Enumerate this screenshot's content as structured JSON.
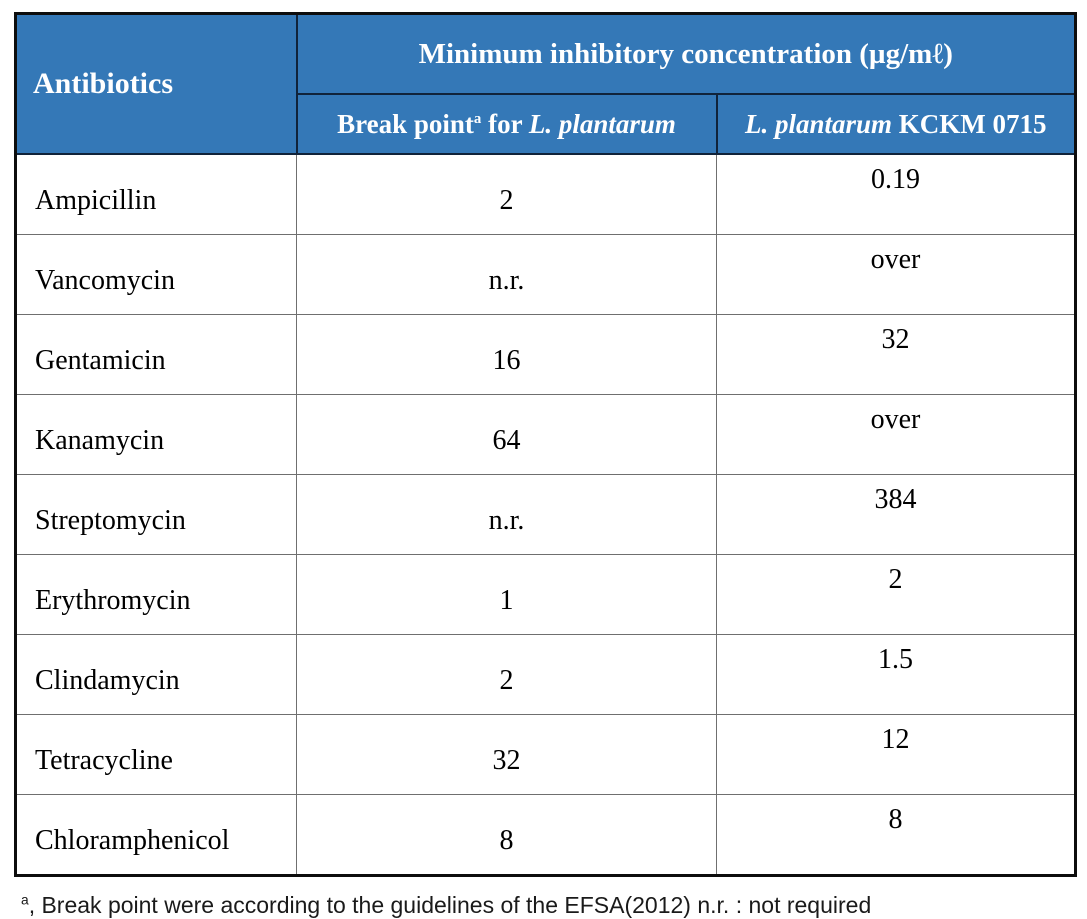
{
  "colors": {
    "header_bg": "#3478b7",
    "header_text": "#ffffff",
    "body_text": "#000000",
    "outer_border": "#0d0d0d",
    "inner_border": "#6f6f6f"
  },
  "table": {
    "header": {
      "antibiotics_label": "Antibiotics",
      "mic_title": "Minimum inhibitory concentration (µg/mℓ)",
      "break_point_col": {
        "prefix": "Break point",
        "superscript": "a",
        "infix": " for ",
        "species_italic": "L. plantarum"
      },
      "strain_col": {
        "species_italic": "L. plantarum",
        "suffix": " KCKM 0715"
      }
    },
    "rows": [
      {
        "antibiotic": "Ampicillin",
        "break_point": "2",
        "kckm_0715": "0.19"
      },
      {
        "antibiotic": "Vancomycin",
        "break_point": "n.r.",
        "kckm_0715": "over"
      },
      {
        "antibiotic": "Gentamicin",
        "break_point": "16",
        "kckm_0715": "32"
      },
      {
        "antibiotic": "Kanamycin",
        "break_point": "64",
        "kckm_0715": "over"
      },
      {
        "antibiotic": "Streptomycin",
        "break_point": "n.r.",
        "kckm_0715": "384"
      },
      {
        "antibiotic": "Erythromycin",
        "break_point": "1",
        "kckm_0715": "2"
      },
      {
        "antibiotic": "Clindamycin",
        "break_point": "2",
        "kckm_0715": "1.5"
      },
      {
        "antibiotic": "Tetracycline",
        "break_point": "32",
        "kckm_0715": "12"
      },
      {
        "antibiotic": "Chloramphenicol",
        "break_point": "8",
        "kckm_0715": "8"
      }
    ],
    "footnote": {
      "superscript": "a",
      "text": ", Break point were according to the guidelines of the EFSA(2012) n.r. : not required"
    }
  },
  "chart_data": {
    "type": "table",
    "title": "Minimum inhibitory concentration (µg/mℓ)",
    "columns": [
      "Antibiotics",
      "Break point for L. plantarum",
      "L. plantarum KCKM 0715"
    ],
    "rows": [
      [
        "Ampicillin",
        "2",
        "0.19"
      ],
      [
        "Vancomycin",
        "n.r.",
        "over"
      ],
      [
        "Gentamicin",
        "16",
        "32"
      ],
      [
        "Kanamycin",
        "64",
        "over"
      ],
      [
        "Streptomycin",
        "n.r.",
        "384"
      ],
      [
        "Erythromycin",
        "1",
        "2"
      ],
      [
        "Clindamycin",
        "2",
        "1.5"
      ],
      [
        "Tetracycline",
        "32",
        "12"
      ],
      [
        "Chloramphenicol",
        "8",
        "8"
      ]
    ]
  }
}
